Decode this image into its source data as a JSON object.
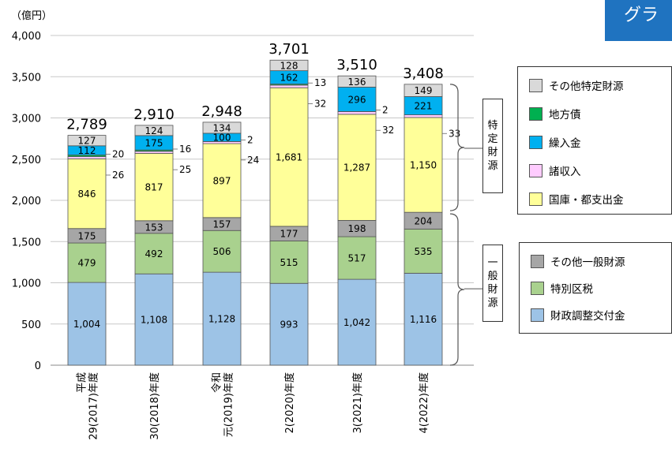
{
  "corner_tab": "グラ",
  "chart_data": {
    "type": "bar",
    "stacked": true,
    "unit_label": "（億円）",
    "ylim": [
      0,
      4000
    ],
    "yticks": [
      "0",
      "500",
      "1,000",
      "1,500",
      "2,000",
      "2,500",
      "3,000",
      "3,500",
      "4,000"
    ],
    "categories": [
      [
        "平成",
        "29(2017)年度"
      ],
      [
        "30(2018)年度"
      ],
      [
        "令和",
        "元(2019)年度"
      ],
      [
        "2(2020)年度"
      ],
      [
        "3(2021)年度"
      ],
      [
        "4(2022)年度"
      ]
    ],
    "series": [
      {
        "name": "財政調整交付金",
        "color": "#9dc3e6",
        "values": [
          1004,
          1108,
          1128,
          993,
          1042,
          1116
        ],
        "labels": [
          "1,004",
          "1,108",
          "1,128",
          "993",
          "1,042",
          "1,116"
        ]
      },
      {
        "name": "特別区税",
        "color": "#a9d18e",
        "values": [
          479,
          492,
          506,
          515,
          517,
          535
        ],
        "labels": [
          "479",
          "492",
          "506",
          "515",
          "517",
          "535"
        ]
      },
      {
        "name": "その他一般財源",
        "color": "#a6a6a6",
        "values": [
          175,
          153,
          157,
          177,
          198,
          204
        ],
        "labels": [
          "175",
          "153",
          "157",
          "177",
          "198",
          "204"
        ]
      },
      {
        "name": "国庫・都支出金",
        "color": "#ffff99",
        "values": [
          846,
          817,
          897,
          1681,
          1287,
          1150
        ],
        "labels": [
          "846",
          "817",
          "897",
          "1,681",
          "1,287",
          "1,150"
        ]
      },
      {
        "name": "諸収入",
        "color": "#ffccff",
        "values": [
          26,
          25,
          24,
          32,
          32,
          33
        ],
        "labels": [
          "26",
          "25",
          "24",
          "32",
          "32",
          "33"
        ]
      },
      {
        "name": "地方債",
        "color": "#00b050",
        "values": [
          20,
          16,
          2,
          13,
          2,
          0
        ],
        "labels": [
          "20",
          "16",
          "2",
          "13",
          "2",
          ""
        ]
      },
      {
        "name": "繰入金",
        "color": "#00b0f0",
        "values": [
          112,
          175,
          100,
          162,
          296,
          221
        ],
        "labels": [
          "112",
          "175",
          "100",
          "162",
          "296",
          "221"
        ]
      },
      {
        "name": "その他特定財源",
        "color": "#d9d9d9",
        "values": [
          127,
          124,
          134,
          128,
          136,
          149
        ],
        "labels": [
          "127",
          "124",
          "134",
          "128",
          "136",
          "149"
        ]
      }
    ],
    "totals": [
      "2,789",
      "2,910",
      "2,948",
      "3,701",
      "3,510",
      "3,408"
    ],
    "group_labels": {
      "specific": "特定財源",
      "general": "一般財源"
    },
    "grid": true
  },
  "legend_specific": [
    {
      "label": "その他特定財源",
      "color": "#d9d9d9"
    },
    {
      "label": "地方債",
      "color": "#00b050"
    },
    {
      "label": "繰入金",
      "color": "#00b0f0"
    },
    {
      "label": "諸収入",
      "color": "#ffccff"
    },
    {
      "label": "国庫・都支出金",
      "color": "#ffff99"
    }
  ],
  "legend_general": [
    {
      "label": "その他一般財源",
      "color": "#a6a6a6"
    },
    {
      "label": "特別区税",
      "color": "#a9d18e"
    },
    {
      "label": "財政調整交付金",
      "color": "#9dc3e6"
    }
  ]
}
